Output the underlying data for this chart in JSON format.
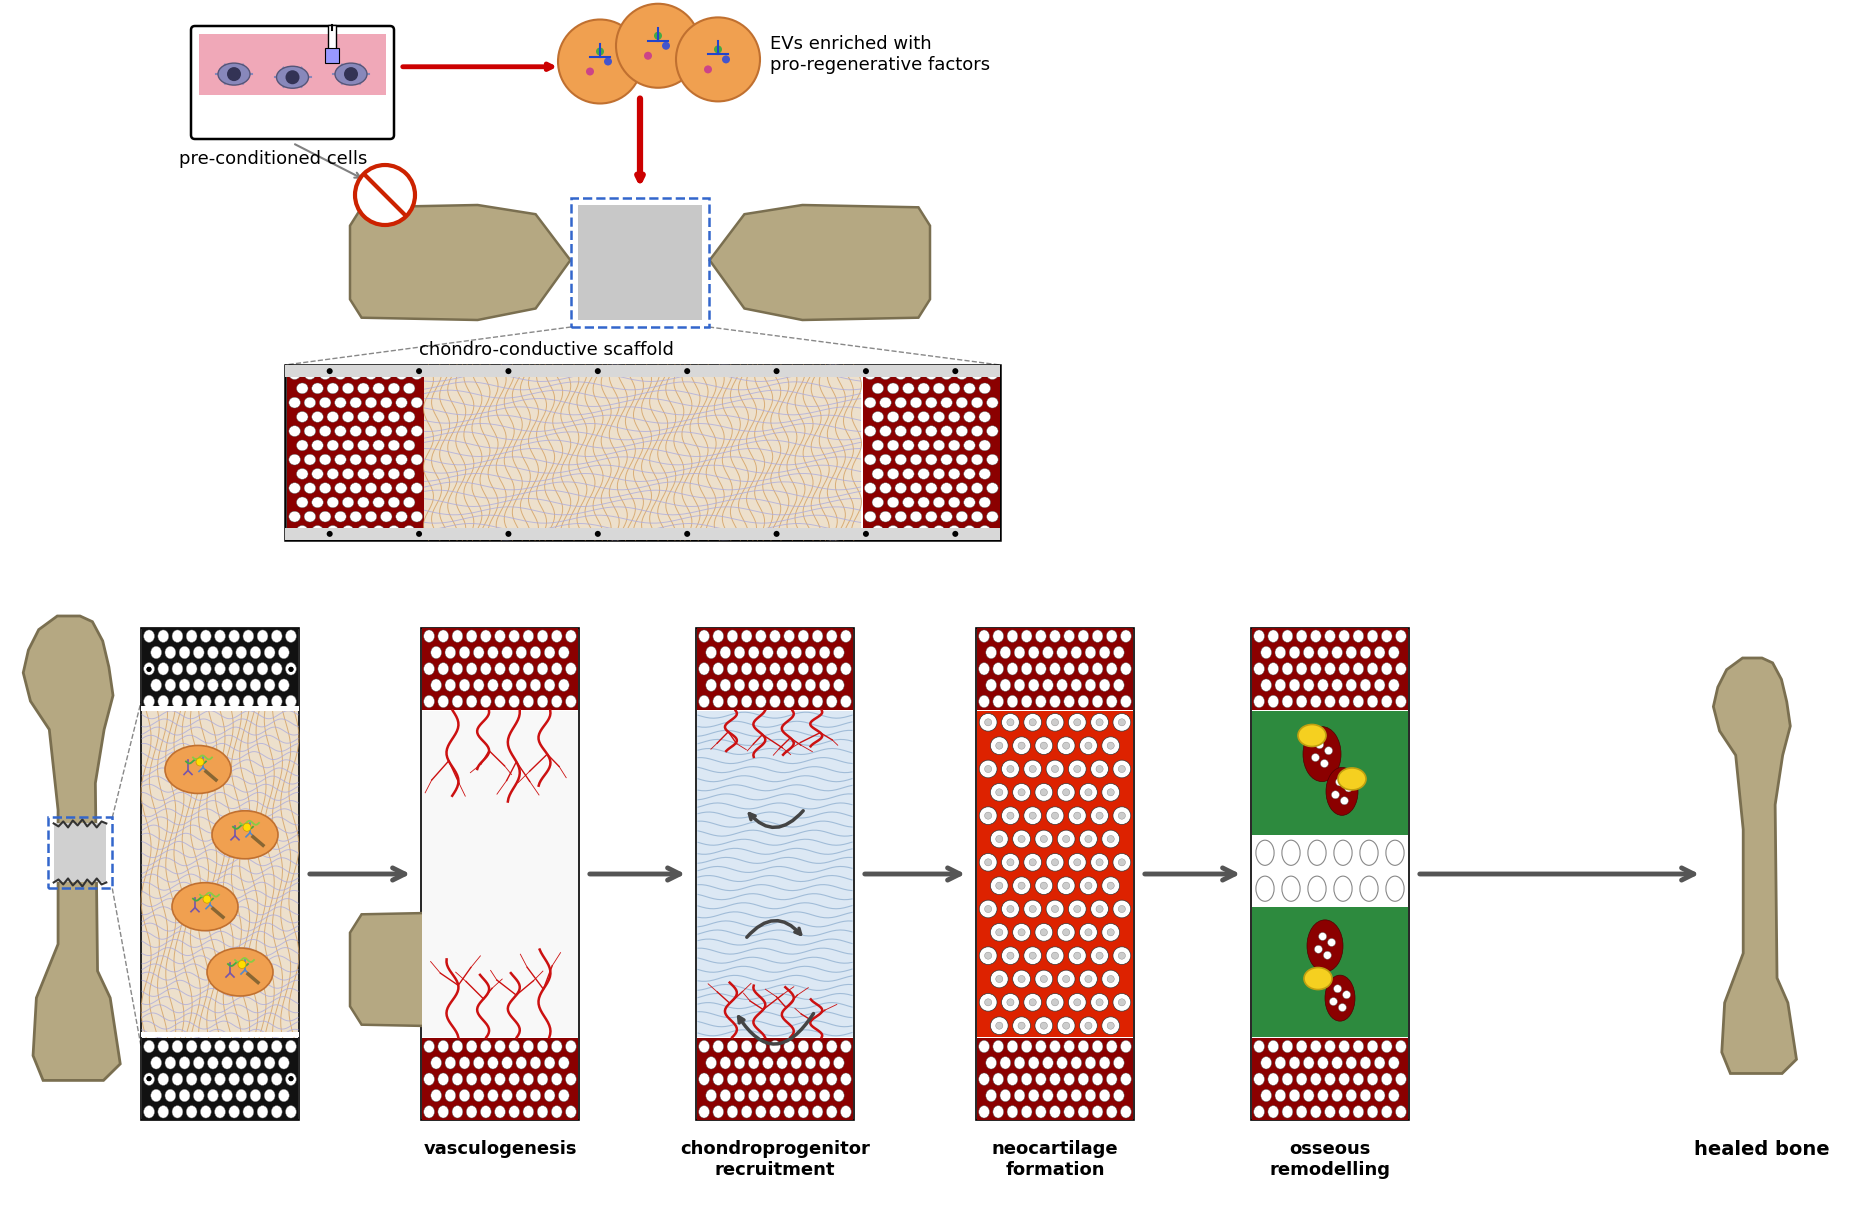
{
  "bg_color": "#ffffff",
  "label_preconditioned": "pre-conditioned cells",
  "label_evs": "EVs enriched with\npro-regenerative factors",
  "label_scaffold": "chondro-conductive scaffold",
  "label_vasculogenesis": "vasculogenesis",
  "label_chondroprogenitor": "chondroprogenitor\nrecruitment",
  "label_neocartilage": "neocartilage\nformation",
  "label_osseous": "osseous\nremodelling",
  "label_healed": "healed bone",
  "bone_color": "#b5a882",
  "bone_outline": "#7a6f50",
  "dark_red": "#8b0000",
  "cartilage_red": "#dd2200",
  "osseous_green": "#2d8a3e",
  "scaffold_orange": "#e07828",
  "scaffold_blue": "#6688cc",
  "scaffold_bg": "#e8dcc8",
  "ev_fill": "#f0a050",
  "ev_outline": "#c07830",
  "vessel_red": "#cc1111",
  "arrow_dark": "#555555",
  "no_sign_red": "#cc2200",
  "cortical_white": "#f5f5f5",
  "cortical_border": "#cccccc"
}
